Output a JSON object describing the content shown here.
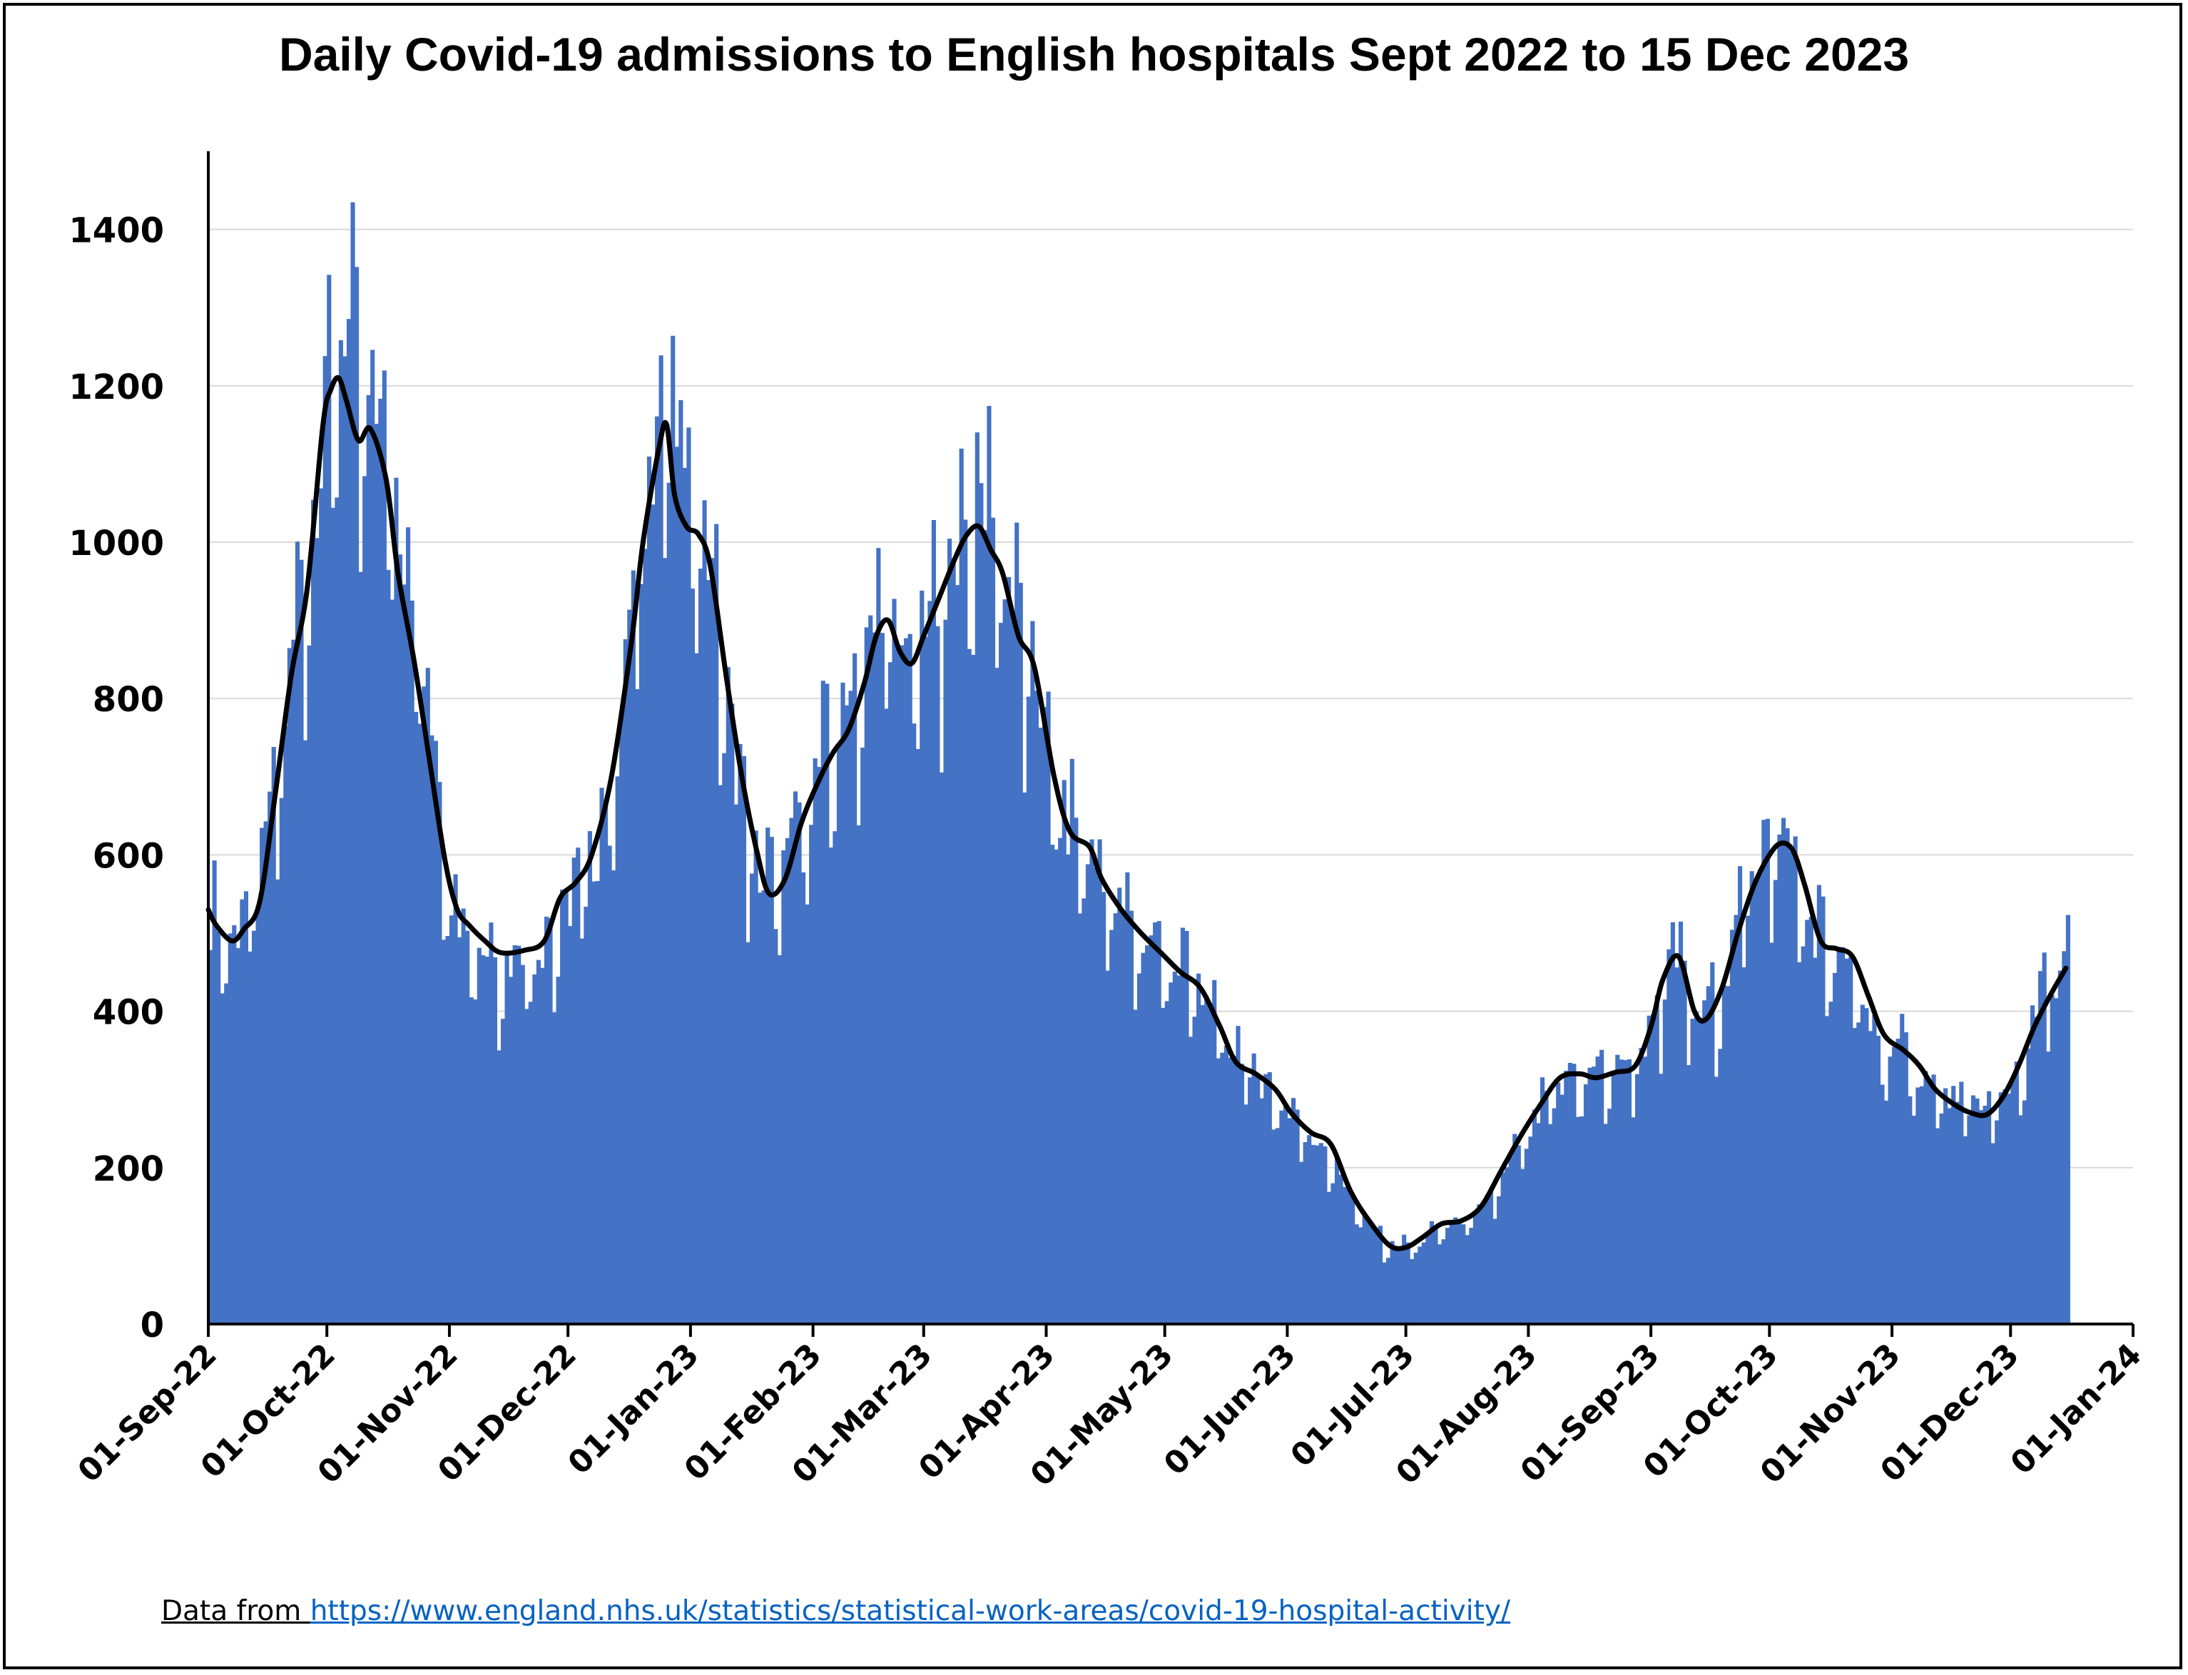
{
  "chart_data": {
    "type": "bar",
    "title": "Daily Covid-19 admissions to English hospitals Sept 2022 to 15 Dec 2023",
    "xlabel": "",
    "ylabel": "",
    "x_start": "2022-09-01",
    "x_end": "2023-12-15",
    "xlim": [
      "2022-09-01",
      "2024-01-01"
    ],
    "ylim": [
      0,
      1500
    ],
    "y_ticks": [
      "0",
      "200",
      "400",
      "600",
      "800",
      "1000",
      "1200",
      "1400"
    ],
    "x_tick_labels": [
      "01-Sep-22",
      "01-Oct-22",
      "01-Nov-22",
      "01-Dec-22",
      "01-Jan-23",
      "01-Feb-23",
      "01-Mar-23",
      "01-Apr-23",
      "01-May-23",
      "01-Jun-23",
      "01-Jul-23",
      "01-Aug-23",
      "01-Sep-23",
      "01-Oct-23",
      "01-Nov-23",
      "01-Dec-23",
      "01-Jan-24"
    ],
    "x_tick_dates": [
      "2022-09-01",
      "2022-10-01",
      "2022-11-01",
      "2022-12-01",
      "2023-01-01",
      "2023-02-01",
      "2023-03-01",
      "2023-04-01",
      "2023-05-01",
      "2023-06-01",
      "2023-07-01",
      "2023-08-01",
      "2023-09-01",
      "2023-10-01",
      "2023-11-01",
      "2023-12-01",
      "2024-01-01"
    ],
    "grid": true,
    "legend": "none",
    "series": [
      {
        "type": "bar",
        "color": "#4472C4",
        "anchors": [
          [
            "2022-09-01",
            520
          ],
          [
            "2022-09-07",
            500
          ],
          [
            "2022-09-12",
            540
          ],
          [
            "2022-09-17",
            660
          ],
          [
            "2022-09-21",
            830
          ],
          [
            "2022-09-25",
            980
          ],
          [
            "2022-09-29",
            1130
          ],
          [
            "2022-10-03",
            1250
          ],
          [
            "2022-10-05",
            1300
          ],
          [
            "2022-10-09",
            1180
          ],
          [
            "2022-10-13",
            1160
          ],
          [
            "2022-10-18",
            1080
          ],
          [
            "2022-10-23",
            900
          ],
          [
            "2022-10-28",
            720
          ],
          [
            "2022-11-01",
            560
          ],
          [
            "2022-11-06",
            500
          ],
          [
            "2022-11-12",
            470
          ],
          [
            "2022-11-20",
            470
          ],
          [
            "2022-11-27",
            500
          ],
          [
            "2022-12-03",
            560
          ],
          [
            "2022-12-08",
            610
          ],
          [
            "2022-12-13",
            740
          ],
          [
            "2022-12-18",
            950
          ],
          [
            "2022-12-22",
            1130
          ],
          [
            "2022-12-26",
            1230
          ],
          [
            "2022-12-30",
            1050
          ],
          [
            "2023-01-03",
            1050
          ],
          [
            "2023-01-08",
            880
          ],
          [
            "2023-01-13",
            680
          ],
          [
            "2023-01-19",
            560
          ],
          [
            "2023-01-25",
            590
          ],
          [
            "2023-02-01",
            700
          ],
          [
            "2023-02-08",
            770
          ],
          [
            "2023-02-14",
            860
          ],
          [
            "2023-02-19",
            920
          ],
          [
            "2023-02-23",
            850
          ],
          [
            "2023-02-27",
            860
          ],
          [
            "2023-03-04",
            920
          ],
          [
            "2023-03-10",
            1020
          ],
          [
            "2023-03-14",
            1060
          ],
          [
            "2023-03-19",
            1030
          ],
          [
            "2023-03-24",
            900
          ],
          [
            "2023-03-29",
            820
          ],
          [
            "2023-04-04",
            650
          ],
          [
            "2023-04-10",
            620
          ],
          [
            "2023-04-17",
            540
          ],
          [
            "2023-04-24",
            500
          ],
          [
            "2023-05-01",
            470
          ],
          [
            "2023-05-08",
            440
          ],
          [
            "2023-05-15",
            370
          ],
          [
            "2023-05-22",
            330
          ],
          [
            "2023-05-29",
            290
          ],
          [
            "2023-06-05",
            250
          ],
          [
            "2023-06-12",
            210
          ],
          [
            "2023-06-19",
            140
          ],
          [
            "2023-06-26",
            100
          ],
          [
            "2023-07-03",
            100
          ],
          [
            "2023-07-10",
            125
          ],
          [
            "2023-07-17",
            130
          ],
          [
            "2023-07-23",
            170
          ],
          [
            "2023-07-30",
            230
          ],
          [
            "2023-08-06",
            290
          ],
          [
            "2023-08-13",
            320
          ],
          [
            "2023-08-20",
            320
          ],
          [
            "2023-08-27",
            330
          ],
          [
            "2023-09-02",
            400
          ],
          [
            "2023-09-06",
            480
          ],
          [
            "2023-09-10",
            420
          ],
          [
            "2023-09-14",
            390
          ],
          [
            "2023-09-20",
            460
          ],
          [
            "2023-09-25",
            560
          ],
          [
            "2023-09-30",
            640
          ],
          [
            "2023-10-05",
            610
          ],
          [
            "2023-10-10",
            520
          ],
          [
            "2023-10-16",
            480
          ],
          [
            "2023-10-22",
            430
          ],
          [
            "2023-10-28",
            360
          ],
          [
            "2023-11-04",
            340
          ],
          [
            "2023-11-11",
            300
          ],
          [
            "2023-11-18",
            280
          ],
          [
            "2023-11-25",
            275
          ],
          [
            "2023-12-01",
            300
          ],
          [
            "2023-12-06",
            380
          ],
          [
            "2023-12-10",
            440
          ],
          [
            "2023-12-15",
            470
          ]
        ]
      },
      {
        "type": "line",
        "color": "#000000",
        "points": [
          [
            "2022-09-01",
            530
          ],
          [
            "2022-09-03",
            510
          ],
          [
            "2022-09-07",
            490
          ],
          [
            "2022-09-10",
            505
          ],
          [
            "2022-09-14",
            540
          ],
          [
            "2022-09-18",
            680
          ],
          [
            "2022-09-22",
            830
          ],
          [
            "2022-09-26",
            940
          ],
          [
            "2022-09-30",
            1150
          ],
          [
            "2022-10-02",
            1195
          ],
          [
            "2022-10-04",
            1210
          ],
          [
            "2022-10-06",
            1180
          ],
          [
            "2022-10-09",
            1130
          ],
          [
            "2022-10-12",
            1145
          ],
          [
            "2022-10-16",
            1080
          ],
          [
            "2022-10-19",
            960
          ],
          [
            "2022-10-23",
            850
          ],
          [
            "2022-10-27",
            720
          ],
          [
            "2022-10-31",
            590
          ],
          [
            "2022-11-03",
            530
          ],
          [
            "2022-11-06",
            510
          ],
          [
            "2022-11-10",
            490
          ],
          [
            "2022-11-14",
            475
          ],
          [
            "2022-11-20",
            478
          ],
          [
            "2022-11-25",
            490
          ],
          [
            "2022-11-29",
            545
          ],
          [
            "2022-12-03",
            565
          ],
          [
            "2022-12-07",
            600
          ],
          [
            "2022-12-12",
            700
          ],
          [
            "2022-12-17",
            870
          ],
          [
            "2022-12-20",
            1000
          ],
          [
            "2022-12-24",
            1120
          ],
          [
            "2022-12-26",
            1150
          ],
          [
            "2022-12-28",
            1060
          ],
          [
            "2022-12-31",
            1020
          ],
          [
            "2023-01-03",
            1010
          ],
          [
            "2023-01-06",
            970
          ],
          [
            "2023-01-10",
            830
          ],
          [
            "2023-01-14",
            700
          ],
          [
            "2023-01-18",
            600
          ],
          [
            "2023-01-21",
            550
          ],
          [
            "2023-01-25",
            570
          ],
          [
            "2023-01-29",
            640
          ],
          [
            "2023-02-02",
            690
          ],
          [
            "2023-02-06",
            730
          ],
          [
            "2023-02-10",
            760
          ],
          [
            "2023-02-14",
            820
          ],
          [
            "2023-02-17",
            880
          ],
          [
            "2023-02-20",
            900
          ],
          [
            "2023-02-23",
            860
          ],
          [
            "2023-02-26",
            845
          ],
          [
            "2023-03-01",
            880
          ],
          [
            "2023-03-05",
            930
          ],
          [
            "2023-03-09",
            980
          ],
          [
            "2023-03-12",
            1010
          ],
          [
            "2023-03-15",
            1020
          ],
          [
            "2023-03-18",
            990
          ],
          [
            "2023-03-21",
            960
          ],
          [
            "2023-03-25",
            880
          ],
          [
            "2023-03-29",
            840
          ],
          [
            "2023-04-03",
            700
          ],
          [
            "2023-04-07",
            630
          ],
          [
            "2023-04-12",
            610
          ],
          [
            "2023-04-15",
            570
          ],
          [
            "2023-04-20",
            530
          ],
          [
            "2023-04-25",
            500
          ],
          [
            "2023-04-30",
            475
          ],
          [
            "2023-05-05",
            450
          ],
          [
            "2023-05-10",
            430
          ],
          [
            "2023-05-15",
            380
          ],
          [
            "2023-05-19",
            335
          ],
          [
            "2023-05-24",
            320
          ],
          [
            "2023-05-29",
            300
          ],
          [
            "2023-06-02",
            270
          ],
          [
            "2023-06-07",
            245
          ],
          [
            "2023-06-12",
            230
          ],
          [
            "2023-06-17",
            170
          ],
          [
            "2023-06-22",
            130
          ],
          [
            "2023-06-27",
            100
          ],
          [
            "2023-07-01",
            98
          ],
          [
            "2023-07-05",
            110
          ],
          [
            "2023-07-10",
            128
          ],
          [
            "2023-07-15",
            132
          ],
          [
            "2023-07-20",
            150
          ],
          [
            "2023-07-25",
            195
          ],
          [
            "2023-07-30",
            240
          ],
          [
            "2023-08-04",
            280
          ],
          [
            "2023-08-09",
            315
          ],
          [
            "2023-08-14",
            320
          ],
          [
            "2023-08-18",
            315
          ],
          [
            "2023-08-23",
            322
          ],
          [
            "2023-08-28",
            330
          ],
          [
            "2023-09-01",
            380
          ],
          [
            "2023-09-04",
            440
          ],
          [
            "2023-09-08",
            470
          ],
          [
            "2023-09-12",
            400
          ],
          [
            "2023-09-15",
            390
          ],
          [
            "2023-09-19",
            430
          ],
          [
            "2023-09-23",
            500
          ],
          [
            "2023-09-27",
            560
          ],
          [
            "2023-10-01",
            600
          ],
          [
            "2023-10-04",
            615
          ],
          [
            "2023-10-07",
            605
          ],
          [
            "2023-10-10",
            560
          ],
          [
            "2023-10-14",
            490
          ],
          [
            "2023-10-18",
            480
          ],
          [
            "2023-10-22",
            470
          ],
          [
            "2023-10-26",
            420
          ],
          [
            "2023-10-30",
            370
          ],
          [
            "2023-11-04",
            350
          ],
          [
            "2023-11-08",
            330
          ],
          [
            "2023-11-12",
            300
          ],
          [
            "2023-11-17",
            280
          ],
          [
            "2023-11-21",
            270
          ],
          [
            "2023-11-25",
            268
          ],
          [
            "2023-11-29",
            290
          ],
          [
            "2023-12-03",
            330
          ],
          [
            "2023-12-07",
            380
          ],
          [
            "2023-12-11",
            420
          ],
          [
            "2023-12-15",
            455
          ]
        ]
      }
    ]
  },
  "source": {
    "prefix": "Data from ",
    "link": "https://www.england.nhs.uk/statistics/statistical-work-areas/covid-19-hospital-activity/"
  }
}
